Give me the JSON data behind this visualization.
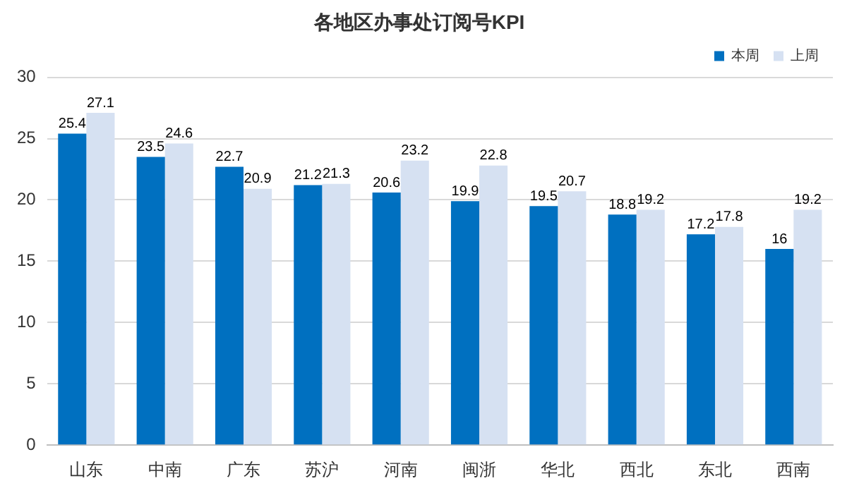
{
  "chart_data": {
    "type": "bar",
    "title": "各地区办事处订阅号KPI",
    "categories": [
      "山东",
      "中南",
      "广东",
      "苏沪",
      "河南",
      "闽浙",
      "华北",
      "西北",
      "东北",
      "西南"
    ],
    "series": [
      {
        "name": "本周",
        "color": "#0070c0",
        "values": [
          25.4,
          23.5,
          22.7,
          21.2,
          20.6,
          19.9,
          19.5,
          18.8,
          17.2,
          16
        ]
      },
      {
        "name": "上周",
        "color": "#d6e1f2",
        "values": [
          27.1,
          24.6,
          20.9,
          21.3,
          23.2,
          22.8,
          20.7,
          19.2,
          17.8,
          19.2
        ]
      }
    ],
    "ylim": [
      0,
      30
    ],
    "yticks": [
      0,
      5,
      10,
      15,
      20,
      25,
      30
    ],
    "grid": "y",
    "legend": "top right",
    "data_labels": true
  }
}
